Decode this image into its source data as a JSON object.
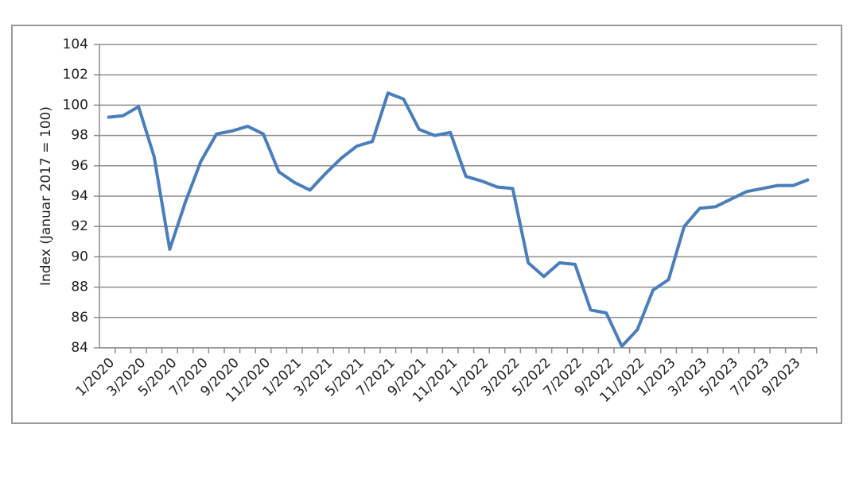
{
  "chart_data": {
    "type": "line",
    "y_label": "Index (Januar 2017 = 100)",
    "categories": [
      "1/2020",
      null,
      "3/2020",
      null,
      "5/2020",
      null,
      "7/2020",
      null,
      "9/2020",
      null,
      "11/2020",
      null,
      "1/2021",
      null,
      "3/2021",
      null,
      "5/2021",
      null,
      "7/2021",
      null,
      "9/2021",
      null,
      "11/2021",
      null,
      "1/2022",
      null,
      "3/2022",
      null,
      "5/2022",
      null,
      "7/2022",
      null,
      "9/2022",
      null,
      "11/2022",
      null,
      "1/2023",
      null,
      "3/2023",
      null,
      "5/2023",
      null,
      "7/2023",
      null,
      "9/2023",
      null
    ],
    "values": [
      99.2,
      99.3,
      99.9,
      96.6,
      90.5,
      93.6,
      96.3,
      98.1,
      98.3,
      98.6,
      98.1,
      95.6,
      94.9,
      94.4,
      95.5,
      96.5,
      97.3,
      97.6,
      100.8,
      100.4,
      98.4,
      98.0,
      98.2,
      95.3,
      95.0,
      94.6,
      94.5,
      89.6,
      88.7,
      89.6,
      89.5,
      86.5,
      86.3,
      84.1,
      85.2,
      87.8,
      88.5,
      92.0,
      93.2,
      93.3,
      93.8,
      94.3,
      94.5,
      94.7,
      94.7,
      95.1
    ],
    "color": "#4a7ebb",
    "ylim": [
      84,
      104
    ],
    "yticks": [
      84,
      86,
      88,
      90,
      92,
      94,
      96,
      98,
      100,
      102,
      104
    ],
    "grid": true
  }
}
